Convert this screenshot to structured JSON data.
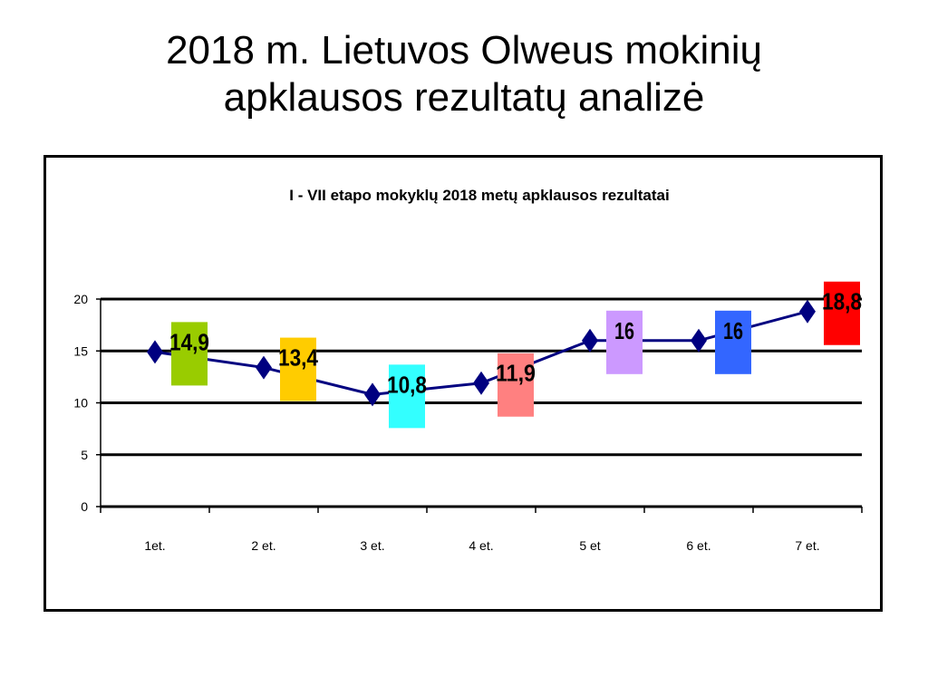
{
  "slide": {
    "title_line1": "2018 m. Lietuvos Olweus mokinių",
    "title_line2": "apklausos rezultatų analizė"
  },
  "chart_data": {
    "type": "line",
    "title": "I - VII etapo mokyklų 2018 metų apklausos rezultatai",
    "categories": [
      "1et.",
      "2 et.",
      "3 et.",
      "4 et.",
      "5 et",
      "6 et.",
      "7 et."
    ],
    "values": [
      14.9,
      13.4,
      10.8,
      11.9,
      16,
      16,
      18.8
    ],
    "data_labels": [
      "14,9",
      "13,4",
      "10,8",
      "11,9",
      "16",
      "16",
      "18,8"
    ],
    "label_colors": [
      "#99cc00",
      "#ffcc00",
      "#33ffff",
      "#ff8080",
      "#cc99ff",
      "#3366ff",
      "#ff0000"
    ],
    "y_ticks": [
      0,
      5,
      10,
      15,
      20
    ],
    "ylim": [
      0,
      20
    ],
    "grid": true,
    "legend": "none",
    "series_color": "#000080",
    "marker": "diamond",
    "xlabel": "",
    "ylabel": ""
  }
}
